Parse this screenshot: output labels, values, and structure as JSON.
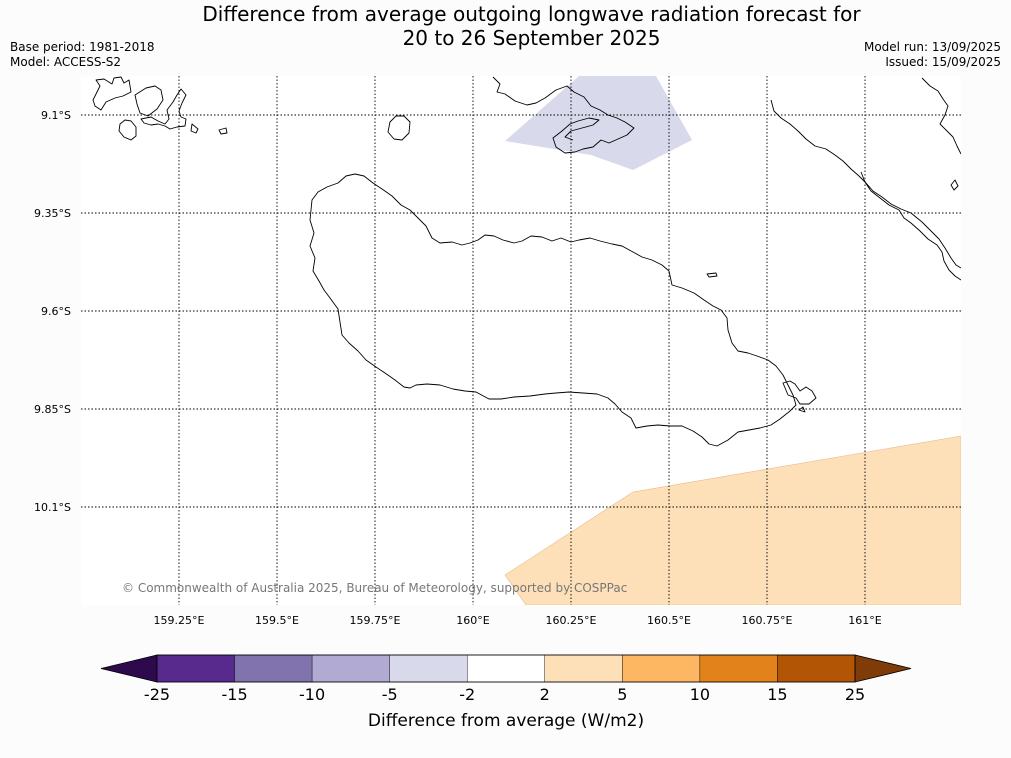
{
  "title": {
    "line1": "Difference from average outgoing longwave radiation forecast for",
    "line2": "20 to 26 September 2025"
  },
  "info_left": {
    "base_period": "Base period: 1981-2018",
    "model": "Model: ACCESS-S2"
  },
  "info_right": {
    "model_run": "Model run: 13/09/2025",
    "issued": "Issued: 15/09/2025"
  },
  "map": {
    "lat_labels": [
      "9.1°S",
      "9.35°S",
      "9.6°S",
      "9.85°S",
      "10.1°S"
    ],
    "lon_labels": [
      "159.25°E",
      "159.5°E",
      "159.75°E",
      "160°E",
      "160.25°E",
      "160.5°E",
      "160.75°E",
      "161°E"
    ],
    "copyright": "© Commonwealth of Australia 2025, Bureau of Meteorology, supported by COSPPac",
    "anomaly_regions": [
      {
        "name": "negative anomaly area (north)",
        "category": "-5 to -2",
        "color": "#d8d9ea"
      },
      {
        "name": "positive anomaly area (south-east)",
        "category": "2 to 5",
        "color": "#fde0b8"
      }
    ]
  },
  "colorbar": {
    "ticks": [
      "-25",
      "-15",
      "-10",
      "-5",
      "-2",
      "2",
      "5",
      "10",
      "15",
      "25"
    ],
    "colors": [
      "#592a8e",
      "#8173ae",
      "#b1aad2",
      "#d8d9ea",
      "#ffffff",
      "#fee0b8",
      "#fdb763",
      "#e1821a",
      "#b25606"
    ],
    "extend_low_color": "#2d0a4b",
    "extend_high_color": "#7f3b08",
    "label": "Difference from average (W/m2)"
  }
}
